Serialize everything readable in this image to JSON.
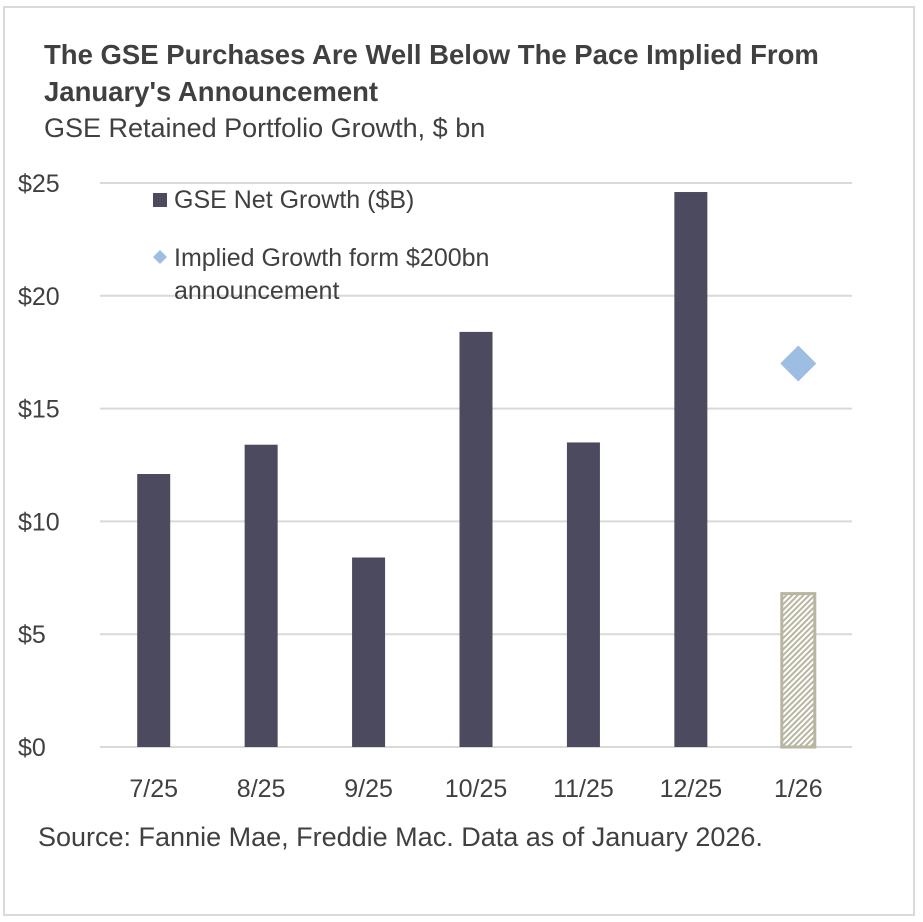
{
  "chart_data": {
    "type": "bar",
    "title": "The GSE Purchases Are Well Below The Pace Implied From January's Announcement",
    "subtitle": "GSE Retained Portfolio Growth, $ bn",
    "categories": [
      "7/25",
      "8/25",
      "9/25",
      "10/25",
      "11/25",
      "12/25",
      "1/26"
    ],
    "series": [
      {
        "name": "GSE Net Growth ($B)",
        "type": "bar",
        "values": [
          12.1,
          13.4,
          8.4,
          18.4,
          13.5,
          24.6,
          6.8
        ],
        "color": "#4b4a5e",
        "partial_last_color": "#b8b6a0",
        "partial_last_hatched": true
      },
      {
        "name": "Implied Growth form $200bn announcement",
        "type": "scatter",
        "marker": "diamond",
        "values": [
          null,
          null,
          null,
          null,
          null,
          null,
          17.0
        ],
        "color": "#9dbde3"
      }
    ],
    "yticks": [
      "$0",
      "$5",
      "$10",
      "$15",
      "$20",
      "$25"
    ],
    "ytick_values": [
      0,
      5,
      10,
      15,
      20,
      25
    ],
    "ylim": [
      0,
      25
    ],
    "grid": true,
    "legend": "top-left",
    "source": "Source: Fannie Mae, Freddie Mac. Data as of January 2026."
  }
}
